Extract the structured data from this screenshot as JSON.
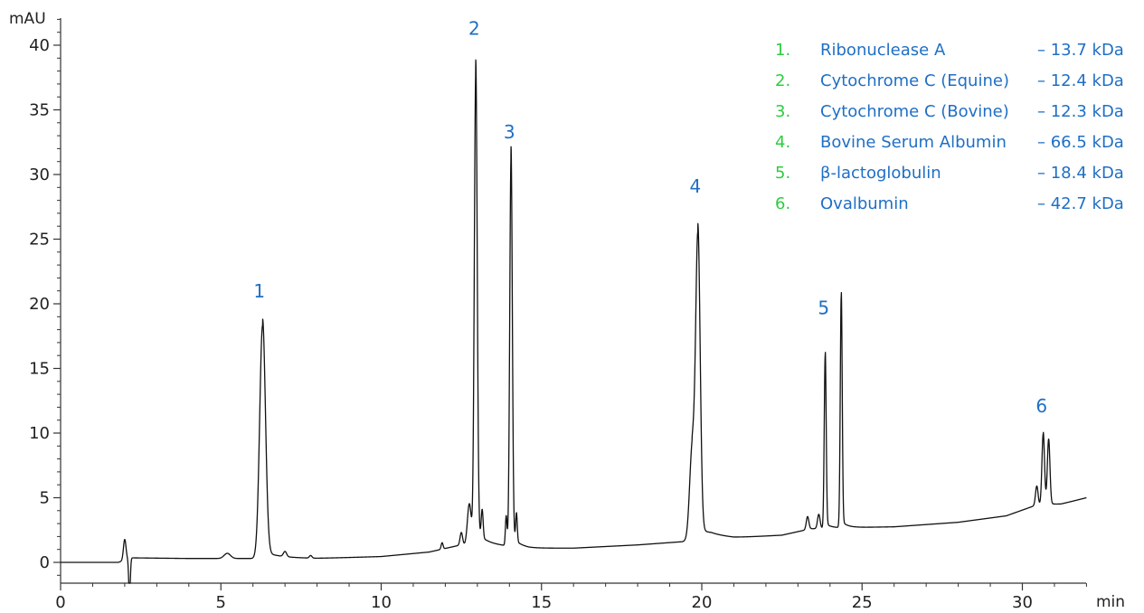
{
  "chart_data": {
    "type": "line",
    "title": "",
    "xlabel": "min",
    "ylabel": "mAU",
    "xlim": [
      0,
      32
    ],
    "ylim": [
      -1.5,
      42
    ],
    "x_ticks": [
      0,
      5,
      10,
      15,
      20,
      25,
      30
    ],
    "y_ticks": [
      0,
      5,
      10,
      15,
      20,
      25,
      30,
      35,
      40
    ],
    "grid": false,
    "line_color": "#111111",
    "label_color": "#1f6fc5",
    "number_color": "#2ecc40",
    "baseline": [
      {
        "x": 0,
        "y": 0
      },
      {
        "x": 1.8,
        "y": 0
      },
      {
        "x": 2.2,
        "y": 0.35
      },
      {
        "x": 4,
        "y": 0.3
      },
      {
        "x": 8,
        "y": 0.3
      },
      {
        "x": 10,
        "y": 0.45
      },
      {
        "x": 11.5,
        "y": 0.8
      },
      {
        "x": 12.4,
        "y": 1.3
      },
      {
        "x": 13.3,
        "y": 1.4
      },
      {
        "x": 14.6,
        "y": 1.1
      },
      {
        "x": 16,
        "y": 1.1
      },
      {
        "x": 18,
        "y": 1.35
      },
      {
        "x": 19.4,
        "y": 1.6
      },
      {
        "x": 20.3,
        "y": 2.0
      },
      {
        "x": 21,
        "y": 1.9
      },
      {
        "x": 22.5,
        "y": 2.1
      },
      {
        "x": 23.4,
        "y": 2.6
      },
      {
        "x": 24.8,
        "y": 2.7
      },
      {
        "x": 26,
        "y": 2.75
      },
      {
        "x": 28,
        "y": 3.1
      },
      {
        "x": 29.5,
        "y": 3.6
      },
      {
        "x": 30.4,
        "y": 4.4
      },
      {
        "x": 31.2,
        "y": 4.5
      },
      {
        "x": 32,
        "y": 5.0
      }
    ],
    "peaks": [
      {
        "x": 2.0,
        "height": 1.6,
        "width": 0.04
      },
      {
        "x": 2.15,
        "height": -3.0,
        "width": 0.025
      },
      {
        "x": 5.2,
        "height": 0.4,
        "width": 0.1
      },
      {
        "x": 6.3,
        "height": 18.0,
        "width": 0.09
      },
      {
        "x": 7.0,
        "height": 0.4,
        "width": 0.05
      },
      {
        "x": 7.8,
        "height": 0.2,
        "width": 0.04
      },
      {
        "x": 11.9,
        "height": 0.5,
        "width": 0.03
      },
      {
        "x": 12.5,
        "height": 1.0,
        "width": 0.04
      },
      {
        "x": 12.75,
        "height": 3.2,
        "width": 0.06
      },
      {
        "x": 12.95,
        "height": 36.4,
        "width": 0.045
      },
      {
        "x": 13.15,
        "height": 2.2,
        "width": 0.03
      },
      {
        "x": 13.9,
        "height": 2.3,
        "width": 0.025
      },
      {
        "x": 14.05,
        "height": 30.0,
        "width": 0.04
      },
      {
        "x": 14.22,
        "height": 2.2,
        "width": 0.025
      },
      {
        "x": 19.7,
        "height": 7.0,
        "width": 0.08
      },
      {
        "x": 19.88,
        "height": 23.0,
        "width": 0.07
      },
      {
        "x": 23.3,
        "height": 1.0,
        "width": 0.04
      },
      {
        "x": 23.65,
        "height": 1.1,
        "width": 0.04
      },
      {
        "x": 23.85,
        "height": 13.4,
        "width": 0.03
      },
      {
        "x": 24.35,
        "height": 17.9,
        "width": 0.03
      },
      {
        "x": 30.45,
        "height": 1.5,
        "width": 0.04
      },
      {
        "x": 30.65,
        "height": 5.5,
        "width": 0.04
      },
      {
        "x": 30.82,
        "height": 5.0,
        "width": 0.04
      }
    ],
    "peak_labels": [
      {
        "label": "1",
        "x": 6.2,
        "y": 20.5
      },
      {
        "label": "2",
        "x": 12.9,
        "y": 40.8
      },
      {
        "label": "3",
        "x": 14.0,
        "y": 32.8
      },
      {
        "label": "4",
        "x": 19.8,
        "y": 28.6
      },
      {
        "label": "5",
        "x": 23.8,
        "y": 19.2
      },
      {
        "label": "6",
        "x": 30.6,
        "y": 11.6
      }
    ],
    "legend": {
      "position": "top-right",
      "items": [
        {
          "number": "1.",
          "name": "Ribonuclease A",
          "mass": "– 13.7 kDa"
        },
        {
          "number": "2.",
          "name": "Cytochrome C (Equine)",
          "mass": "– 12.4 kDa"
        },
        {
          "number": "3.",
          "name": "Cytochrome C (Bovine)",
          "mass": "– 12.3 kDa"
        },
        {
          "number": "4.",
          "name": "Bovine Serum Albumin",
          "mass": "– 66.5 kDa"
        },
        {
          "number": "5.",
          "name": "β-lactoglobulin",
          "mass": "– 18.4 kDa"
        },
        {
          "number": "6.",
          "name": "Ovalbumin",
          "mass": "– 42.7 kDa"
        }
      ]
    }
  }
}
